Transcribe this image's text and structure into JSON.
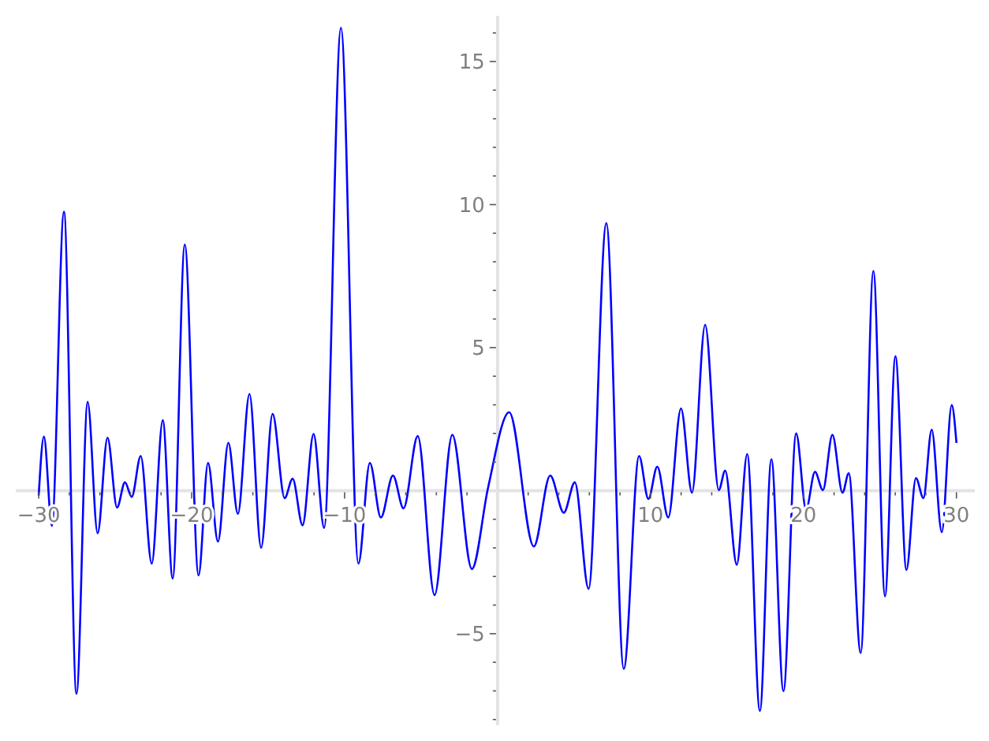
{
  "chart_data": {
    "type": "line",
    "xlim": [
      -31.5,
      31.2
    ],
    "ylim": [
      -8.2,
      16.6
    ],
    "xticks": [
      {
        "value": -30,
        "label": "−30"
      },
      {
        "value": -28,
        "label": null
      },
      {
        "value": -26,
        "label": null
      },
      {
        "value": -24,
        "label": null
      },
      {
        "value": -22,
        "label": null
      },
      {
        "value": -20,
        "label": "−20"
      },
      {
        "value": -18,
        "label": null
      },
      {
        "value": -16,
        "label": null
      },
      {
        "value": -14,
        "label": null
      },
      {
        "value": -12,
        "label": null
      },
      {
        "value": -10,
        "label": "−10"
      },
      {
        "value": -8,
        "label": null
      },
      {
        "value": -6,
        "label": null
      },
      {
        "value": -4,
        "label": null
      },
      {
        "value": -2,
        "label": null
      },
      {
        "value": 2,
        "label": null
      },
      {
        "value": 4,
        "label": null
      },
      {
        "value": 6,
        "label": null
      },
      {
        "value": 8,
        "label": null
      },
      {
        "value": 10,
        "label": "10"
      },
      {
        "value": 12,
        "label": null
      },
      {
        "value": 14,
        "label": null
      },
      {
        "value": 16,
        "label": null
      },
      {
        "value": 18,
        "label": null
      },
      {
        "value": 20,
        "label": "20"
      },
      {
        "value": 22,
        "label": null
      },
      {
        "value": 24,
        "label": null
      },
      {
        "value": 26,
        "label": null
      },
      {
        "value": 28,
        "label": null
      },
      {
        "value": 30,
        "label": "30"
      }
    ],
    "yticks": [
      {
        "value": -8,
        "label": null
      },
      {
        "value": -7,
        "label": null
      },
      {
        "value": -6,
        "label": null
      },
      {
        "value": -5,
        "label": "−5"
      },
      {
        "value": -4,
        "label": null
      },
      {
        "value": -3,
        "label": null
      },
      {
        "value": -2,
        "label": null
      },
      {
        "value": -1,
        "label": null
      },
      {
        "value": 1,
        "label": null
      },
      {
        "value": 2,
        "label": null
      },
      {
        "value": 3,
        "label": null
      },
      {
        "value": 4,
        "label": null
      },
      {
        "value": 5,
        "label": "5"
      },
      {
        "value": 6,
        "label": null
      },
      {
        "value": 7,
        "label": null
      },
      {
        "value": 8,
        "label": null
      },
      {
        "value": 9,
        "label": null
      },
      {
        "value": 10,
        "label": "10"
      },
      {
        "value": 11,
        "label": null
      },
      {
        "value": 12,
        "label": null
      },
      {
        "value": 13,
        "label": null
      },
      {
        "value": 14,
        "label": null
      },
      {
        "value": 15,
        "label": "15"
      },
      {
        "value": 16,
        "label": null
      }
    ],
    "grid": false,
    "marker": "none",
    "line_style": "solid",
    "series": [
      {
        "color": "#0000ff",
        "x": [
          -30,
          -29.66,
          -29.14,
          -28.35,
          -27.53,
          -26.8,
          -26.15,
          -25.5,
          -24.88,
          -24.36,
          -23.92,
          -23.33,
          -22.61,
          -21.89,
          -21.24,
          -20.45,
          -19.55,
          -18.93,
          -18.28,
          -17.6,
          -16.98,
          -16.22,
          -15.46,
          -14.71,
          -13.92,
          -13.4,
          -12.75,
          -12.03,
          -11.34,
          -10.24,
          -9.1,
          -8.35,
          -7.63,
          -6.84,
          -6.15,
          -5.22,
          -4.12,
          -2.96,
          -1.68,
          -0.62,
          0.76,
          2.37,
          3.44,
          4.33,
          5.05,
          5.95,
          7.11,
          8.25,
          9.25,
          9.86,
          10.44,
          11.16,
          11.99,
          12.71,
          13.57,
          14.46,
          14.88,
          15.64,
          16.32,
          17.15,
          17.9,
          18.69,
          19.52,
          20.17,
          20.75,
          21.27,
          21.89,
          22.55,
          22.96,
          23.74,
          24.57,
          25.33,
          26.01,
          26.73,
          27.35,
          27.84,
          28.38,
          29.04,
          29.69,
          30
        ],
        "values": [
          -0.17,
          1.89,
          -1.23,
          9.75,
          -7.1,
          3.1,
          -1.49,
          1.85,
          -0.59,
          0.29,
          -0.22,
          1.21,
          -2.55,
          2.46,
          -3.07,
          8.6,
          -2.96,
          0.97,
          -1.78,
          1.67,
          -0.81,
          3.38,
          -2.0,
          2.68,
          -0.26,
          0.42,
          -1.21,
          1.98,
          -1.3,
          16.18,
          -2.55,
          0.97,
          -0.94,
          0.53,
          -0.62,
          1.91,
          -3.65,
          1.95,
          -2.74,
          0.11,
          2.74,
          -1.95,
          0.53,
          -0.77,
          0.29,
          -3.43,
          9.35,
          -6.23,
          1.21,
          -0.29,
          0.84,
          -0.94,
          2.87,
          -0.07,
          5.8,
          0.02,
          0.7,
          -2.59,
          1.28,
          -7.7,
          1.1,
          -7.01,
          2.0,
          -0.66,
          0.66,
          0.02,
          1.95,
          -0.07,
          0.61,
          -5.67,
          7.68,
          -3.69,
          4.7,
          -2.77,
          0.44,
          -0.26,
          2.13,
          -1.45,
          2.99,
          1.67
        ]
      }
    ]
  }
}
